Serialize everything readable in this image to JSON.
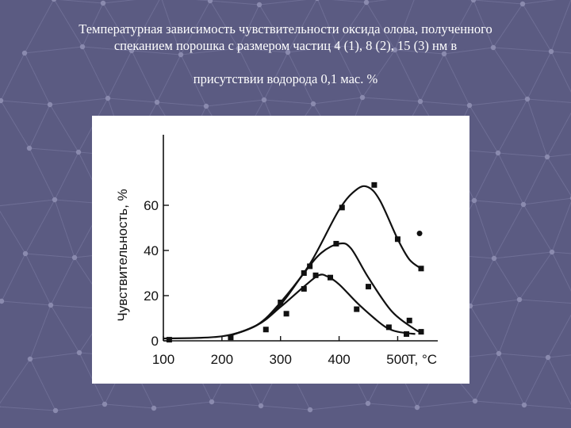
{
  "slide": {
    "title_line_1": "Температурная зависимость чувствительности оксида олова, полученного",
    "title_line_2": "спеканием порошка с размером частиц 4 (1), 8 (2), 15 (3) нм в",
    "title_line_3": "присутствии водорода 0,1 мас. %"
  },
  "colors": {
    "background": "#5b5b82",
    "background_lines": "#6e6e95",
    "background_dots": "#8a8aae",
    "title_text": "#ffffff",
    "plot": "#111111"
  },
  "chart_data": {
    "type": "line",
    "title": "",
    "xlabel": "T, °C",
    "ylabel": "Чувствительность, %",
    "xlim": [
      100,
      540
    ],
    "ylim": [
      0,
      80
    ],
    "x_ticks": [
      "100",
      "200",
      "300",
      "400",
      "500"
    ],
    "y_ticks": [
      "0",
      "20",
      "40",
      "60"
    ],
    "grid": false,
    "legend": "none",
    "series": [
      {
        "curve": [
          [
            100,
            1
          ],
          [
            200,
            2
          ],
          [
            260,
            7
          ],
          [
            300,
            15
          ],
          [
            340,
            24
          ],
          [
            365,
            29
          ],
          [
            380,
            28.5
          ],
          [
            400,
            25
          ],
          [
            430,
            17
          ],
          [
            460,
            10
          ],
          [
            480,
            6
          ],
          [
            500,
            4
          ],
          [
            530,
            3
          ]
        ],
        "markers": [
          [
            110,
            0.5
          ],
          [
            215,
            1.5
          ],
          [
            275,
            5
          ],
          [
            310,
            12
          ],
          [
            340,
            23
          ],
          [
            360,
            29
          ],
          [
            385,
            28
          ],
          [
            430,
            14
          ],
          [
            485,
            6
          ],
          [
            515,
            3
          ]
        ]
      },
      {
        "curve": [
          [
            210,
            2
          ],
          [
            260,
            7
          ],
          [
            300,
            16
          ],
          [
            340,
            30
          ],
          [
            370,
            39
          ],
          [
            400,
            43
          ],
          [
            420,
            41
          ],
          [
            450,
            28
          ],
          [
            490,
            13
          ],
          [
            530,
            5
          ],
          [
            540,
            4
          ]
        ],
        "markers": [
          [
            300,
            17
          ],
          [
            340,
            30
          ],
          [
            395,
            43
          ],
          [
            450,
            24
          ],
          [
            520,
            9
          ],
          [
            540,
            4
          ]
        ]
      },
      {
        "curve": [
          [
            210,
            2
          ],
          [
            260,
            7
          ],
          [
            300,
            17
          ],
          [
            350,
            34
          ],
          [
            400,
            58
          ],
          [
            430,
            67
          ],
          [
            450,
            68
          ],
          [
            470,
            62
          ],
          [
            500,
            45
          ],
          [
            520,
            36
          ],
          [
            540,
            32
          ]
        ],
        "markers": [
          [
            350,
            33
          ],
          [
            405,
            59
          ],
          [
            460,
            69
          ],
          [
            500,
            45
          ],
          [
            540,
            32
          ]
        ]
      }
    ],
    "annotation": "•"
  }
}
